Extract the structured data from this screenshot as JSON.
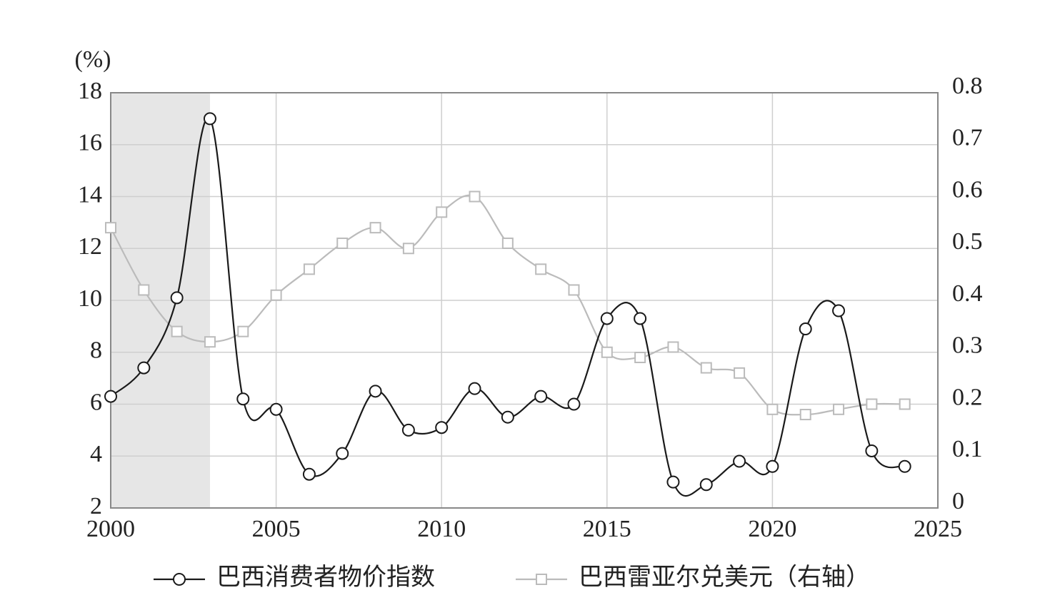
{
  "chart_data": {
    "type": "line",
    "y_label": "(%)",
    "x": [
      2000,
      2001,
      2002,
      2003,
      2004,
      2005,
      2006,
      2007,
      2008,
      2009,
      2010,
      2011,
      2012,
      2013,
      2014,
      2015,
      2016,
      2017,
      2018,
      2019,
      2020,
      2021,
      2022,
      2023,
      2024
    ],
    "series": [
      {
        "name": "巴西消费者物价指数",
        "color": "#1a1a1a",
        "marker": "circle",
        "values": [
          6.3,
          7.4,
          10.1,
          17.0,
          6.2,
          5.8,
          3.3,
          4.1,
          6.5,
          5.0,
          5.1,
          6.6,
          5.5,
          6.3,
          6.0,
          9.3,
          9.3,
          3.0,
          2.9,
          3.8,
          3.6,
          8.9,
          9.6,
          4.2,
          3.6
        ]
      },
      {
        "name": "巴西雷亚尔兑美元（右轴）",
        "color": "#bbbbbb",
        "marker": "square",
        "axis": "y2",
        "values": [
          0.54,
          0.42,
          0.34,
          0.32,
          0.34,
          0.41,
          0.46,
          0.51,
          0.54,
          0.5,
          0.57,
          0.6,
          0.51,
          0.46,
          0.42,
          0.3,
          0.29,
          0.31,
          0.27,
          0.26,
          0.19,
          0.18,
          0.19,
          0.2,
          0.2
        ]
      }
    ],
    "xlim": [
      2000,
      2025
    ],
    "xticks": [
      2000,
      2005,
      2010,
      2015,
      2020,
      2025
    ],
    "ylim": [
      2,
      18
    ],
    "yticks": [
      2,
      4,
      6,
      8,
      10,
      12,
      14,
      16,
      18
    ],
    "y2lim": [
      0,
      0.8
    ],
    "y2ticks": [
      0,
      0.1,
      0.2,
      0.3,
      0.4,
      0.5,
      0.6,
      0.7,
      0.8
    ],
    "shade": [
      2000,
      2003
    ],
    "shade_color": "#e6e6e6",
    "grid": true,
    "legend": "bottom"
  }
}
